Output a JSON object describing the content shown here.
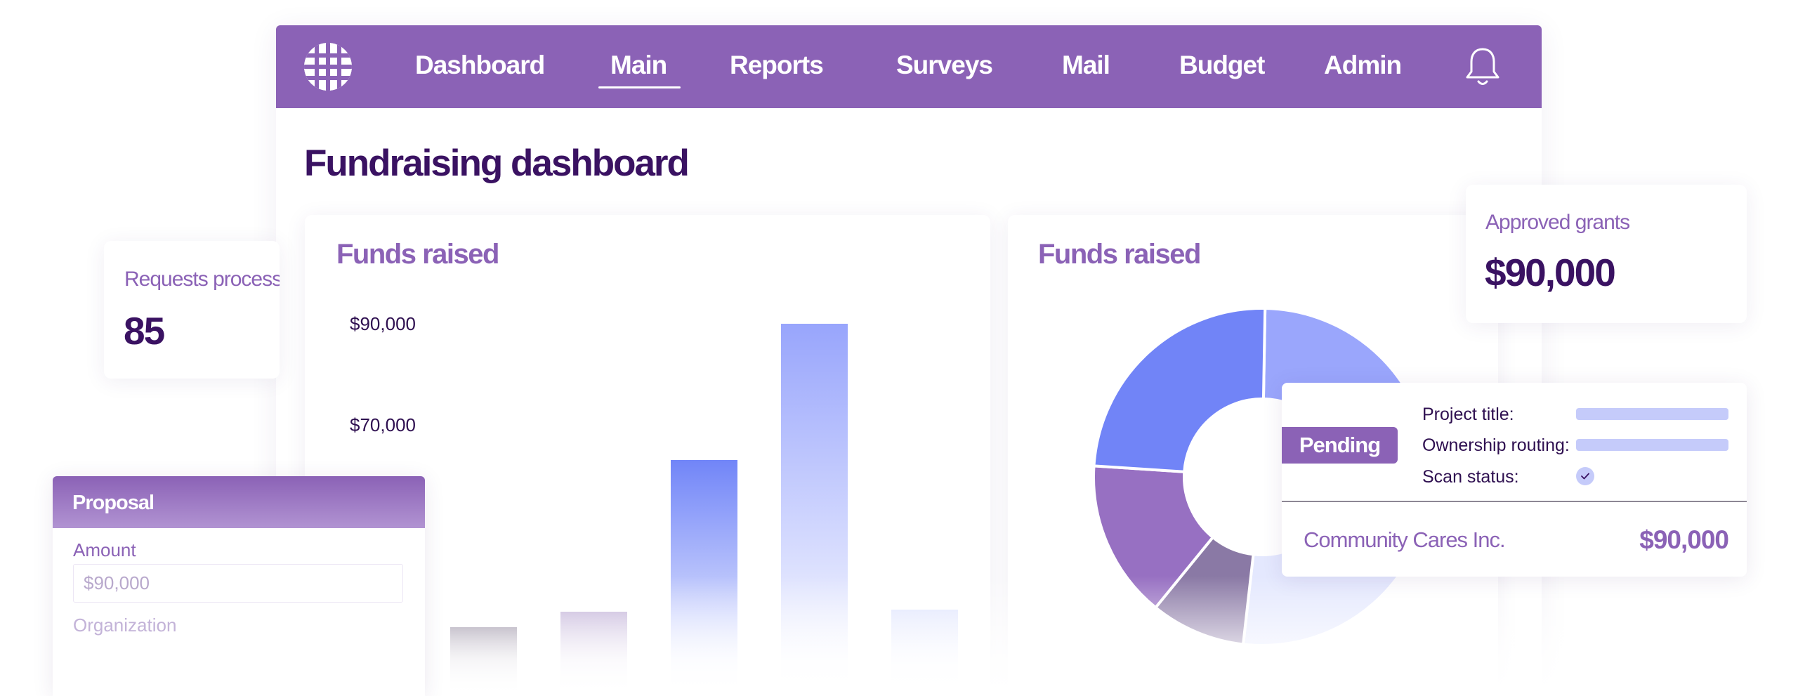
{
  "nav": {
    "items": [
      {
        "label": "Dashboard"
      },
      {
        "label": "Main"
      },
      {
        "label": "Reports"
      },
      {
        "label": "Surveys"
      },
      {
        "label": "Mail"
      },
      {
        "label": "Budget"
      },
      {
        "label": "Admin"
      }
    ],
    "active": "Main",
    "logo_icon": "globe-logo-icon",
    "bell_icon": "bell-icon"
  },
  "page": {
    "title": "Fundraising dashboard"
  },
  "bar_card": {
    "title": "Funds raised"
  },
  "pie_card": {
    "title": "Funds raised"
  },
  "chart_data": [
    {
      "type": "bar",
      "title": "Funds raised",
      "y_ticks": [
        "$90,000",
        "$70,000"
      ],
      "values": [
        30000,
        33000,
        63000,
        90000,
        33500
      ],
      "value_unit": "USD",
      "note": "lower portion of the axis and chart is faded out",
      "colors": [
        "#8d8399",
        "#bfaed6",
        "#7185f8",
        "#98a5fc",
        "#dfe4fd"
      ]
    },
    {
      "type": "pie",
      "title": "Funds raised",
      "donut": true,
      "slices": [
        {
          "value": 17.5,
          "color": "#9aa6fc"
        },
        {
          "value": 10.5,
          "color": "#c6ccfb"
        },
        {
          "value": 14.5,
          "color": "#e4e8fe"
        },
        {
          "value": 7.5,
          "color": "#8a79a5"
        },
        {
          "value": 12.5,
          "color": "#9770c2"
        },
        {
          "value": 20,
          "color": "#7184f7"
        }
      ]
    }
  ],
  "requests_card": {
    "label": "Requests processed",
    "value": "85"
  },
  "grants_card": {
    "label": "Approved grants",
    "value": "$90,000"
  },
  "proposal": {
    "title": "Proposal",
    "amount_label": "Amount",
    "amount_placeholder": "$90,000",
    "organization_label": "Organization"
  },
  "detail": {
    "status": "Pending",
    "project_title_label": "Project title:",
    "ownership_routing_label": "Ownership routing:",
    "scan_status_label": "Scan status:",
    "organization": "Community Cares Inc.",
    "amount": "$90,000"
  },
  "colors": {
    "brand": "#8b62b6",
    "dark": "#3a1262",
    "accent_blue": "#7185f8",
    "light_blue": "#c5cbfa"
  }
}
